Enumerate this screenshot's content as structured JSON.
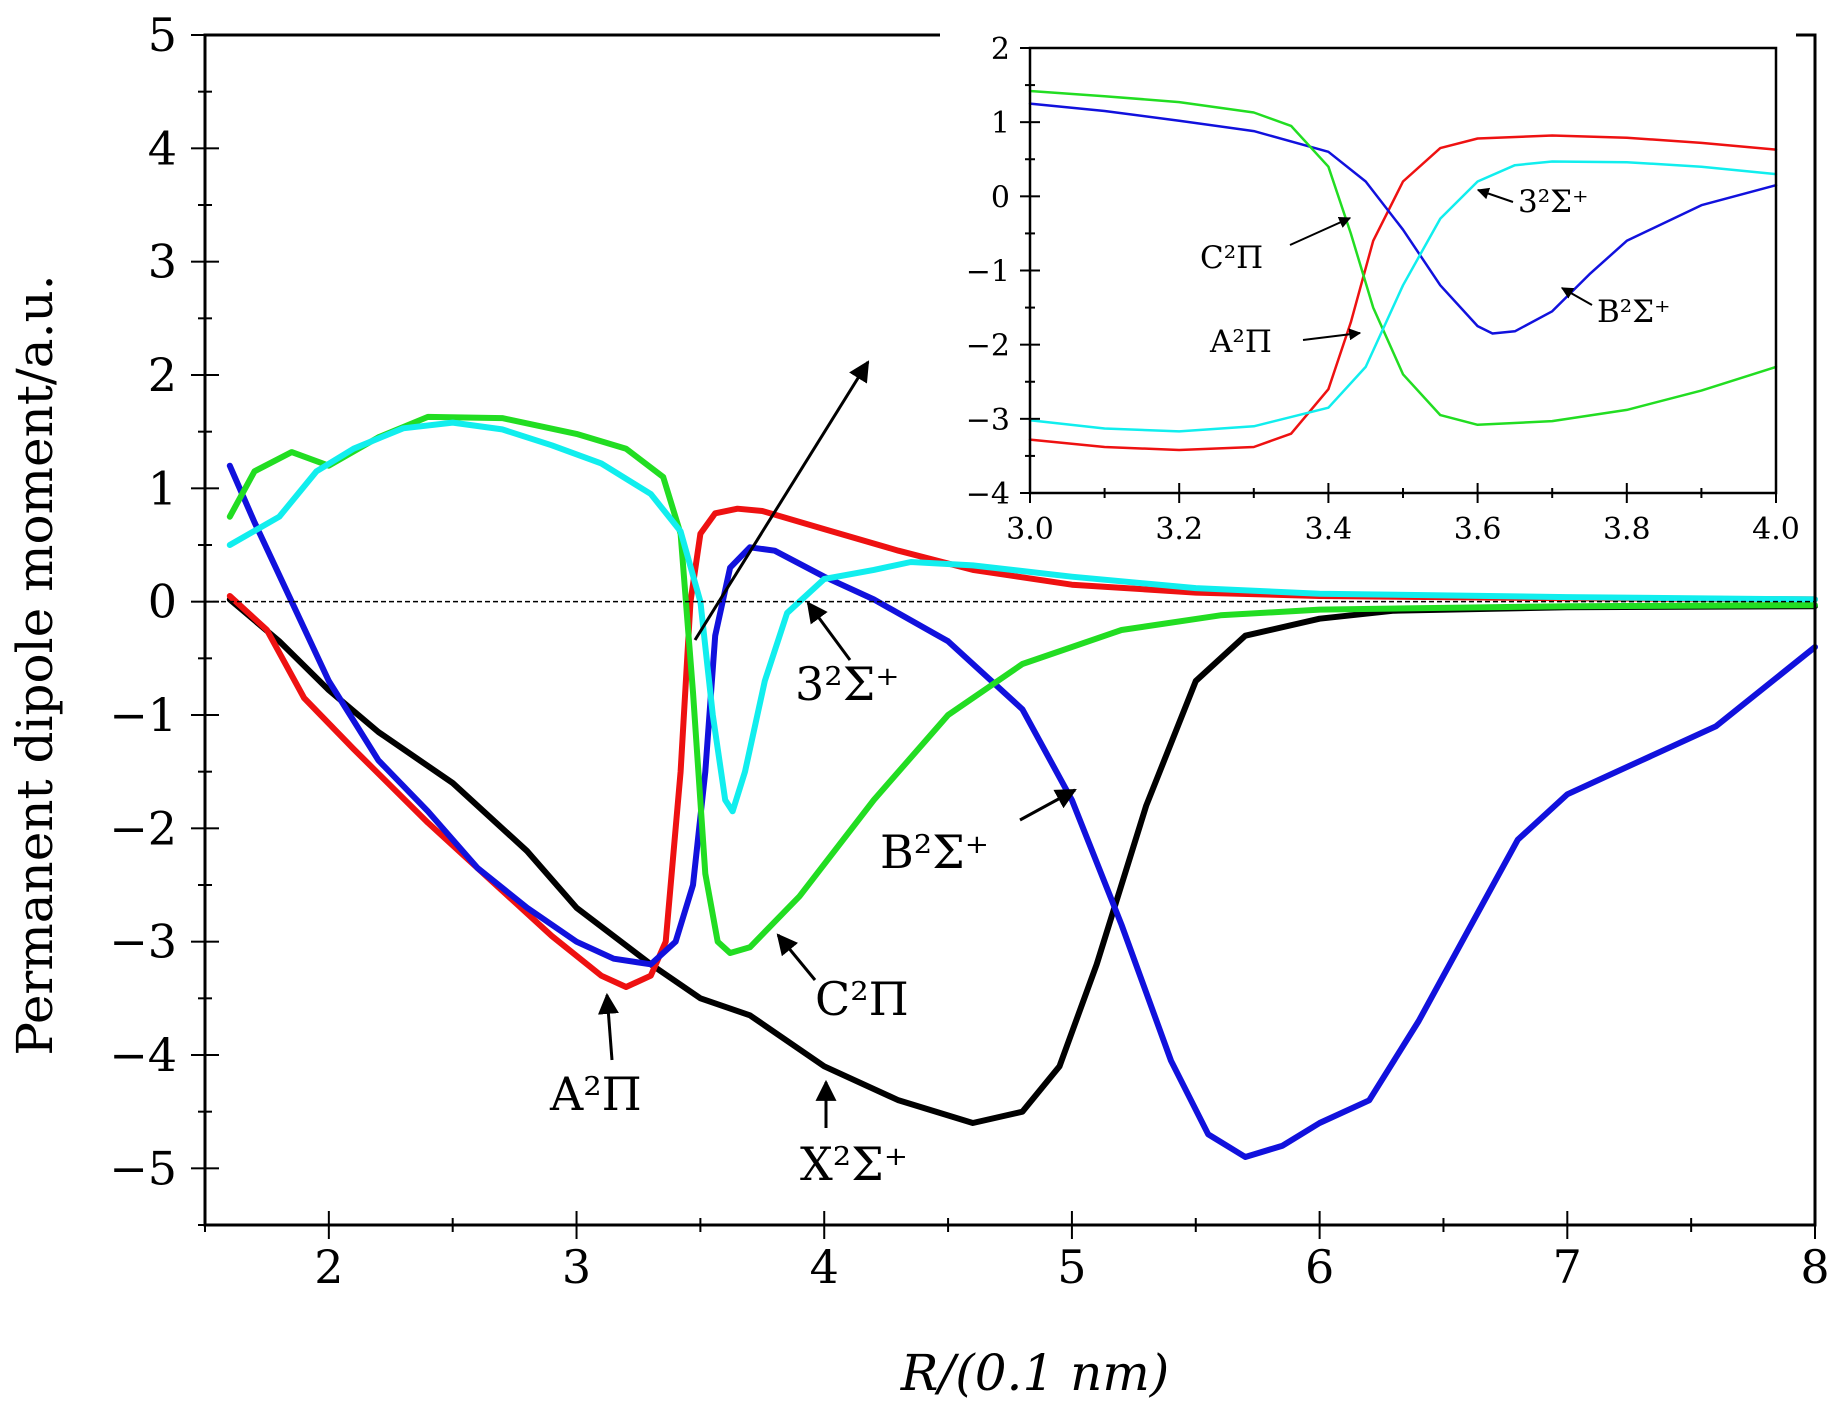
{
  "chart_data": [
    {
      "type": "line",
      "title": "",
      "xlabel": "R/(0.1 nm)",
      "ylabel": "Permanent dipole moment/a.u.",
      "xlim": [
        1.5,
        8
      ],
      "ylim": [
        -5.5,
        5
      ],
      "x_ticks": [
        "2",
        "3",
        "4",
        "5",
        "6",
        "7",
        "8"
      ],
      "y_ticks": [
        "5",
        "4",
        "3",
        "2",
        "1",
        "0",
        "−1",
        "−2",
        "−3",
        "−4",
        "−5"
      ],
      "grid": false,
      "reference_line": {
        "y": 0,
        "style": "dashed"
      },
      "series": [
        {
          "name": "X²Σ⁺",
          "color": "#000000",
          "points": [
            [
              1.6,
              0.02
            ],
            [
              1.8,
              -0.35
            ],
            [
              2.0,
              -0.78
            ],
            [
              2.2,
              -1.15
            ],
            [
              2.5,
              -1.6
            ],
            [
              2.8,
              -2.2
            ],
            [
              3.0,
              -2.7
            ],
            [
              3.3,
              -3.2
            ],
            [
              3.5,
              -3.5
            ],
            [
              3.7,
              -3.65
            ],
            [
              4.0,
              -4.1
            ],
            [
              4.3,
              -4.4
            ],
            [
              4.6,
              -4.6
            ],
            [
              4.8,
              -4.5
            ],
            [
              4.95,
              -4.1
            ],
            [
              5.1,
              -3.2
            ],
            [
              5.3,
              -1.8
            ],
            [
              5.5,
              -0.7
            ],
            [
              5.7,
              -0.3
            ],
            [
              6.0,
              -0.15
            ],
            [
              6.3,
              -0.08
            ],
            [
              7.0,
              -0.05
            ],
            [
              8.0,
              -0.04
            ]
          ]
        },
        {
          "name": "A²Π",
          "color": "#ee1111",
          "points": [
            [
              1.6,
              0.05
            ],
            [
              1.75,
              -0.25
            ],
            [
              1.9,
              -0.85
            ],
            [
              2.1,
              -1.3
            ],
            [
              2.4,
              -1.95
            ],
            [
              2.7,
              -2.55
            ],
            [
              2.9,
              -2.95
            ],
            [
              3.1,
              -3.3
            ],
            [
              3.2,
              -3.4
            ],
            [
              3.3,
              -3.3
            ],
            [
              3.36,
              -3.0
            ],
            [
              3.42,
              -1.5
            ],
            [
              3.46,
              0.0
            ],
            [
              3.5,
              0.6
            ],
            [
              3.56,
              0.78
            ],
            [
              3.65,
              0.82
            ],
            [
              3.75,
              0.8
            ],
            [
              4.0,
              0.64
            ],
            [
              4.3,
              0.45
            ],
            [
              4.6,
              0.28
            ],
            [
              5.0,
              0.15
            ],
            [
              5.5,
              0.08
            ],
            [
              6.0,
              0.05
            ],
            [
              7.0,
              0.03
            ],
            [
              8.0,
              0.02
            ]
          ]
        },
        {
          "name": "B²Σ⁺",
          "color": "#1111dd",
          "points": [
            [
              1.6,
              1.2
            ],
            [
              1.7,
              0.7
            ],
            [
              1.85,
              0.0
            ],
            [
              2.0,
              -0.7
            ],
            [
              2.2,
              -1.4
            ],
            [
              2.4,
              -1.85
            ],
            [
              2.6,
              -2.35
            ],
            [
              2.8,
              -2.7
            ],
            [
              3.0,
              -3.0
            ],
            [
              3.15,
              -3.15
            ],
            [
              3.3,
              -3.2
            ],
            [
              3.4,
              -3.0
            ],
            [
              3.47,
              -2.5
            ],
            [
              3.52,
              -1.5
            ],
            [
              3.56,
              -0.3
            ],
            [
              3.62,
              0.3
            ],
            [
              3.7,
              0.48
            ],
            [
              3.8,
              0.45
            ],
            [
              4.0,
              0.22
            ],
            [
              4.2,
              0.02
            ],
            [
              4.5,
              -0.35
            ],
            [
              4.8,
              -0.95
            ],
            [
              5.0,
              -1.75
            ],
            [
              5.2,
              -2.85
            ],
            [
              5.4,
              -4.05
            ],
            [
              5.55,
              -4.7
            ],
            [
              5.7,
              -4.9
            ],
            [
              5.85,
              -4.8
            ],
            [
              6.0,
              -4.6
            ],
            [
              6.2,
              -4.4
            ],
            [
              6.4,
              -3.7
            ],
            [
              6.6,
              -2.9
            ],
            [
              6.8,
              -2.1
            ],
            [
              7.0,
              -1.7
            ],
            [
              7.3,
              -1.4
            ],
            [
              7.6,
              -1.1
            ],
            [
              8.0,
              -0.4
            ]
          ]
        },
        {
          "name": "C²Π",
          "color": "#22dd22",
          "points": [
            [
              1.6,
              0.75
            ],
            [
              1.7,
              1.15
            ],
            [
              1.85,
              1.32
            ],
            [
              2.0,
              1.2
            ],
            [
              2.2,
              1.45
            ],
            [
              2.4,
              1.63
            ],
            [
              2.7,
              1.62
            ],
            [
              3.0,
              1.48
            ],
            [
              3.2,
              1.35
            ],
            [
              3.35,
              1.1
            ],
            [
              3.42,
              0.6
            ],
            [
              3.47,
              -0.8
            ],
            [
              3.52,
              -2.4
            ],
            [
              3.57,
              -3.0
            ],
            [
              3.62,
              -3.1
            ],
            [
              3.7,
              -3.05
            ],
            [
              3.9,
              -2.6
            ],
            [
              4.2,
              -1.75
            ],
            [
              4.5,
              -1.0
            ],
            [
              4.8,
              -0.55
            ],
            [
              5.2,
              -0.25
            ],
            [
              5.6,
              -0.12
            ],
            [
              6.0,
              -0.07
            ],
            [
              7.0,
              -0.04
            ],
            [
              8.0,
              -0.03
            ]
          ]
        },
        {
          "name": "3²Σ⁺",
          "color": "#11eeee",
          "points": [
            [
              1.6,
              0.5
            ],
            [
              1.8,
              0.75
            ],
            [
              1.95,
              1.15
            ],
            [
              2.1,
              1.35
            ],
            [
              2.3,
              1.53
            ],
            [
              2.5,
              1.58
            ],
            [
              2.7,
              1.52
            ],
            [
              2.9,
              1.38
            ],
            [
              3.1,
              1.22
            ],
            [
              3.3,
              0.95
            ],
            [
              3.42,
              0.62
            ],
            [
              3.5,
              0.0
            ],
            [
              3.55,
              -1.0
            ],
            [
              3.6,
              -1.75
            ],
            [
              3.63,
              -1.85
            ],
            [
              3.68,
              -1.5
            ],
            [
              3.76,
              -0.7
            ],
            [
              3.85,
              -0.1
            ],
            [
              4.0,
              0.2
            ],
            [
              4.2,
              0.28
            ],
            [
              4.35,
              0.35
            ],
            [
              4.6,
              0.32
            ],
            [
              5.0,
              0.22
            ],
            [
              5.5,
              0.12
            ],
            [
              6.0,
              0.07
            ],
            [
              7.0,
              0.04
            ],
            [
              8.0,
              0.02
            ]
          ]
        }
      ],
      "annotations": [
        {
          "text": "X²Σ⁺"
        },
        {
          "text": "A²Π"
        },
        {
          "text": "B²Σ⁺"
        },
        {
          "text": "C²Π"
        },
        {
          "text": "3²Σ⁺"
        }
      ]
    },
    {
      "type": "line",
      "title": "",
      "role": "inset",
      "xlabel": "",
      "ylabel": "",
      "xlim": [
        3.0,
        4.0
      ],
      "ylim": [
        -4,
        2
      ],
      "x_ticks": [
        "3.0",
        "3.2",
        "3.4",
        "3.6",
        "3.8",
        "4.0"
      ],
      "y_ticks": [
        "2",
        "1",
        "0",
        "−1",
        "−2",
        "−3",
        "−4"
      ],
      "grid": false,
      "series": [
        {
          "name": "A²Π",
          "color": "#ee1111",
          "points": [
            [
              3.0,
              -3.28
            ],
            [
              3.1,
              -3.38
            ],
            [
              3.2,
              -3.42
            ],
            [
              3.3,
              -3.38
            ],
            [
              3.35,
              -3.2
            ],
            [
              3.4,
              -2.6
            ],
            [
              3.43,
              -1.7
            ],
            [
              3.46,
              -0.6
            ],
            [
              3.5,
              0.2
            ],
            [
              3.55,
              0.65
            ],
            [
              3.6,
              0.78
            ],
            [
              3.7,
              0.82
            ],
            [
              3.8,
              0.79
            ],
            [
              3.9,
              0.72
            ],
            [
              4.0,
              0.63
            ]
          ]
        },
        {
          "name": "B²Σ⁺",
          "color": "#1111dd",
          "points": [
            [
              3.0,
              1.25
            ],
            [
              3.1,
              1.15
            ],
            [
              3.2,
              1.02
            ],
            [
              3.3,
              0.88
            ],
            [
              3.4,
              0.6
            ],
            [
              3.45,
              0.2
            ],
            [
              3.5,
              -0.45
            ],
            [
              3.55,
              -1.2
            ],
            [
              3.6,
              -1.75
            ],
            [
              3.62,
              -1.85
            ],
            [
              3.65,
              -1.82
            ],
            [
              3.7,
              -1.55
            ],
            [
              3.75,
              -1.05
            ],
            [
              3.8,
              -0.6
            ],
            [
              3.9,
              -0.12
            ],
            [
              4.0,
              0.15
            ]
          ]
        },
        {
          "name": "C²Π",
          "color": "#22dd22",
          "points": [
            [
              3.0,
              1.42
            ],
            [
              3.1,
              1.35
            ],
            [
              3.2,
              1.27
            ],
            [
              3.3,
              1.13
            ],
            [
              3.35,
              0.95
            ],
            [
              3.4,
              0.4
            ],
            [
              3.43,
              -0.5
            ],
            [
              3.46,
              -1.5
            ],
            [
              3.5,
              -2.4
            ],
            [
              3.55,
              -2.95
            ],
            [
              3.6,
              -3.08
            ],
            [
              3.7,
              -3.03
            ],
            [
              3.8,
              -2.88
            ],
            [
              3.9,
              -2.62
            ],
            [
              4.0,
              -2.3
            ]
          ]
        },
        {
          "name": "3²Σ⁺",
          "color": "#11eeee",
          "points": [
            [
              3.0,
              -3.02
            ],
            [
              3.1,
              -3.13
            ],
            [
              3.2,
              -3.17
            ],
            [
              3.3,
              -3.1
            ],
            [
              3.4,
              -2.85
            ],
            [
              3.45,
              -2.3
            ],
            [
              3.5,
              -1.2
            ],
            [
              3.55,
              -0.3
            ],
            [
              3.6,
              0.2
            ],
            [
              3.65,
              0.42
            ],
            [
              3.7,
              0.47
            ],
            [
              3.8,
              0.46
            ],
            [
              3.9,
              0.4
            ],
            [
              4.0,
              0.3
            ]
          ]
        }
      ],
      "annotations": [
        {
          "text": "C²Π"
        },
        {
          "text": "A²Π"
        },
        {
          "text": "3²Σ⁺"
        },
        {
          "text": "B²Σ⁺"
        }
      ]
    }
  ]
}
